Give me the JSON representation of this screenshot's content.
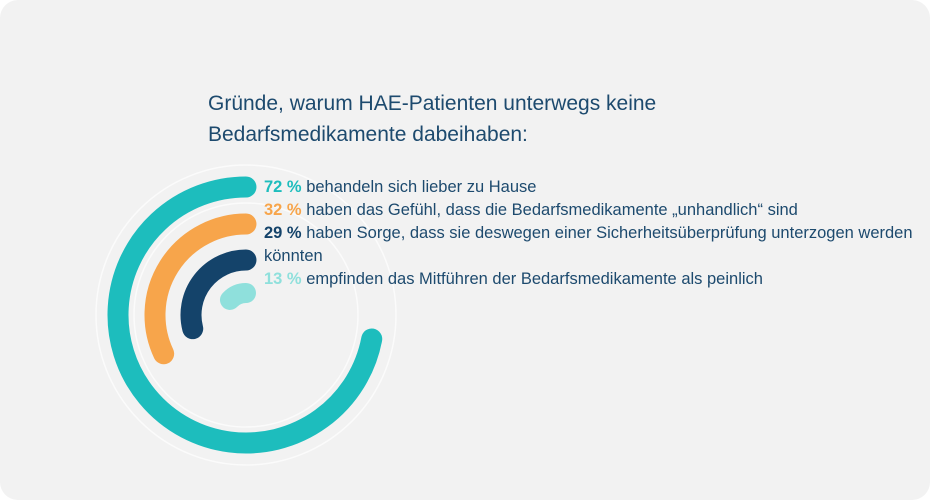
{
  "title": "Gründe, warum HAE-Patienten unterwegs keine Bedarfsmedikamente dabeihaben:",
  "chart_data": {
    "type": "radial-bar",
    "title": "Gründe, warum HAE-Patienten unterwegs keine Bedarfsmedikamente dabeihaben:",
    "unit": "%",
    "series": [
      {
        "value": 72,
        "percent_label": "72 %",
        "text": "behandeln sich lieber zu Hause",
        "color": "#1dbdbd"
      },
      {
        "value": 32,
        "percent_label": "32 %",
        "text": "haben das Gefühl, dass die Bedarfsmedikamente „unhandlich“ sind",
        "color": "#f7a54b"
      },
      {
        "value": 29,
        "percent_label": "29 %",
        "text": "haben Sorge, dass sie deswegen einer Sicherheitsüberprüfung unterzogen werden könnten",
        "color": "#14436a"
      },
      {
        "value": 13,
        "percent_label": "13 %",
        "text": "empfinden das Mitführen der Bedarfsmedikamente als peinlich",
        "color": "#8fe0dc"
      }
    ]
  }
}
